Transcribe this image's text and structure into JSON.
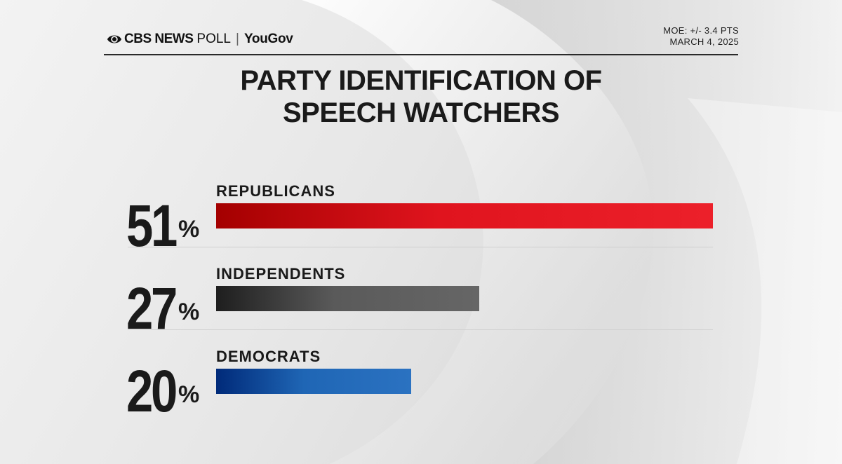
{
  "header": {
    "brand_cbs": "CBS NEWS",
    "brand_poll": "POLL",
    "brand_separator": "|",
    "brand_partner": "YouGov",
    "moe": "MOE: +/- 3.4 PTS",
    "date": "MARCH 4, 2025"
  },
  "chart_data": {
    "type": "bar",
    "orientation": "horizontal",
    "title": "PARTY IDENTIFICATION OF SPEECH WATCHERS",
    "title_lines": [
      "PARTY IDENTIFICATION OF",
      "SPEECH WATCHERS"
    ],
    "categories": [
      "REPUBLICANS",
      "INDEPENDENTS",
      "DEMOCRATS"
    ],
    "values": [
      51,
      27,
      20
    ],
    "value_labels": [
      "51",
      "27",
      "20"
    ],
    "unit": "%",
    "colors": [
      "#e0141e",
      "#5a5a5a",
      "#1f66b5"
    ],
    "xlim": [
      0,
      51
    ],
    "grid": false,
    "legend": "none"
  }
}
